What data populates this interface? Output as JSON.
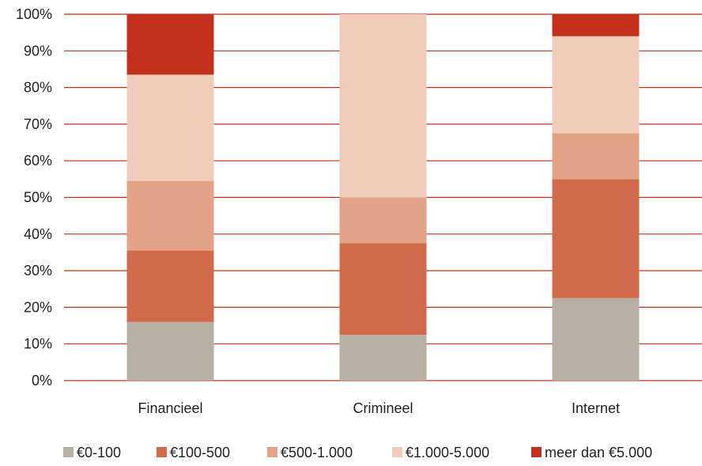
{
  "chart_data": {
    "type": "bar",
    "stacked": true,
    "percent": true,
    "categories": [
      "Financieel",
      "Crimineel",
      "Internet"
    ],
    "series": [
      {
        "name": "€0-100",
        "color": "#b8afa4",
        "values": [
          16,
          12.5,
          22.5
        ]
      },
      {
        "name": "€100-500",
        "color": "#d06a4a",
        "values": [
          19.5,
          25,
          32.5
        ]
      },
      {
        "name": "€500-1.000",
        "color": "#e2a286",
        "values": [
          19,
          12.5,
          12.5
        ]
      },
      {
        "name": "€1.000-5.000",
        "color": "#f2ccbb",
        "values": [
          29,
          50,
          26.5
        ]
      },
      {
        "name": "meer dan €5.000",
        "color": "#c3301c",
        "values": [
          16.5,
          0,
          6
        ]
      }
    ],
    "ylim": [
      0,
      100
    ],
    "yticks": [
      0,
      10,
      20,
      30,
      40,
      50,
      60,
      70,
      80,
      90,
      100
    ],
    "ytick_labels": [
      "0%",
      "10%",
      "20%",
      "30%",
      "40%",
      "50%",
      "60%",
      "70%",
      "80%",
      "90%",
      "100%"
    ],
    "grid": true,
    "grid_color": "#c3301c",
    "legend_position": "bottom"
  }
}
